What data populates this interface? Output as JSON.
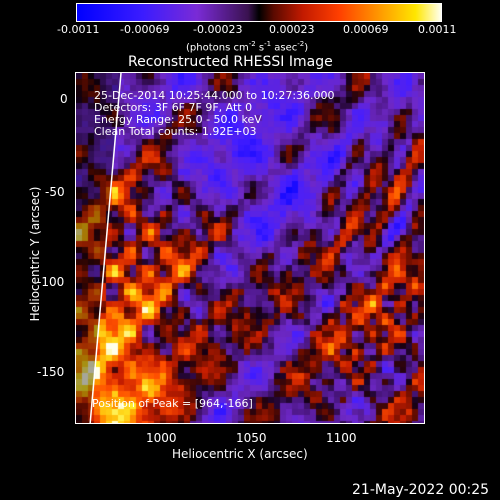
{
  "colorbar": {
    "ticks": [
      "-0.0011",
      "-0.00069",
      "-0.00023",
      "0.00023",
      "0.00069",
      "0.0011"
    ],
    "units": "(photons cm",
    "units_exp1": "-2",
    "units_s": " s",
    "units_exp2": "-1",
    "units_asec": " asec",
    "units_exp3": "-2",
    "units_close": ")"
  },
  "title": "Reconstructed RHESSI Image",
  "info": {
    "line1": "25-Dec-2014 10:25:44.000 to 10:27:36.000",
    "line2": "Detectors: 3F 6F 7F 9F, Att 0",
    "line3": "Energy Range: 25.0 - 50.0 keV",
    "line4": "Clean    Total counts: 1.92E+03",
    "peak": "Position of Peak = [964,-166]"
  },
  "axes": {
    "xlabel": "Heliocentric X (arcsec)",
    "ylabel": "Heliocentric Y (arcsec)",
    "xticks": [
      "1000",
      "1050",
      "1100"
    ],
    "yticks": [
      "0",
      "-50",
      "-100",
      "-150"
    ]
  },
  "footer": {
    "date": "21-May-2022 00:25"
  },
  "colors": {
    "background": "#000000",
    "foreground": "#ffffff"
  }
}
